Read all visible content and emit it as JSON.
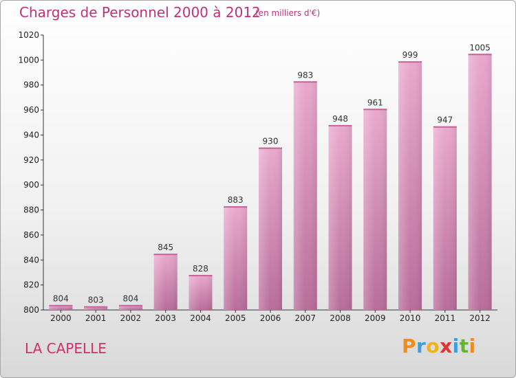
{
  "header": {
    "title": "Charges de Personnel 2000 à 2012",
    "subtitle": "(en milliers d'€)"
  },
  "footer": {
    "commune": "LA CAPELLE"
  },
  "logo": {
    "letters": [
      {
        "char": "P",
        "color": "#f08c1e"
      },
      {
        "char": "r",
        "color": "#3ca0dc"
      },
      {
        "char": "o",
        "color": "#f0b414"
      },
      {
        "char": "x",
        "color": "#e0342c"
      },
      {
        "char": "i",
        "color": "#3ca0dc"
      },
      {
        "char": "t",
        "color": "#64b432"
      },
      {
        "char": "i",
        "color": "#f08c1e"
      }
    ]
  },
  "colors": {
    "title": "#c0307a",
    "bar_light": "#e9a9cd",
    "bar_dark": "#b86d99"
  },
  "chart_data": {
    "type": "bar",
    "title": "Charges de Personnel 2000 à 2012",
    "subtitle": "(en milliers d'€)",
    "xlabel": "",
    "ylabel": "",
    "categories": [
      "2000",
      "2001",
      "2002",
      "2003",
      "2004",
      "2005",
      "2006",
      "2007",
      "2008",
      "2009",
      "2010",
      "2011",
      "2012"
    ],
    "values": [
      804,
      803,
      804,
      845,
      828,
      883,
      930,
      983,
      948,
      961,
      999,
      947,
      1005
    ],
    "data_labels": [
      "804",
      "803",
      "804",
      "845",
      "828",
      "883",
      "930",
      "983",
      "948",
      "961",
      "999",
      "947",
      "1005"
    ],
    "ylim": [
      800,
      1020
    ],
    "yticks": [
      800,
      820,
      840,
      860,
      880,
      900,
      920,
      940,
      960,
      980,
      1000,
      1020
    ],
    "grid": false,
    "legend": "none"
  }
}
